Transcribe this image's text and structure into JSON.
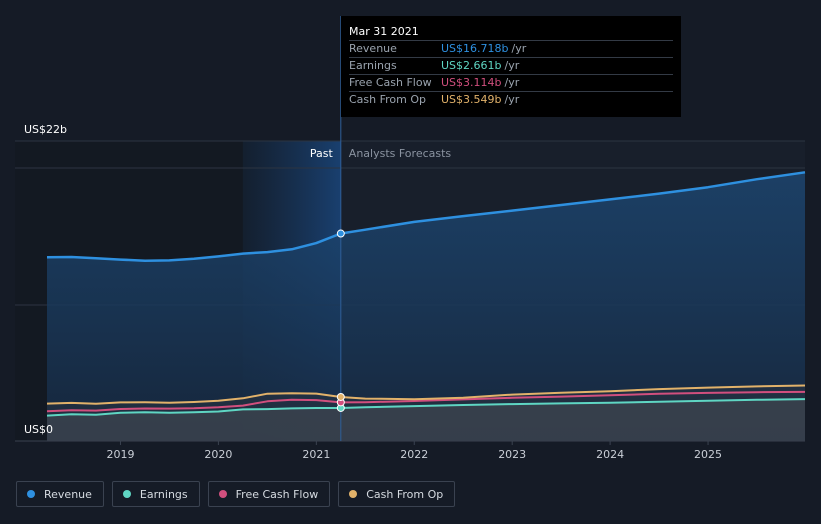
{
  "chart_data": {
    "type": "area",
    "currency": "US$",
    "y_axis": {
      "top_label": "US$22b",
      "bottom_label": "US$0",
      "ylim": [
        0,
        22
      ]
    },
    "x_axis": {
      "ticks": [
        "2019",
        "2020",
        "2021",
        "2022",
        "2023",
        "2024",
        "2025"
      ],
      "tick_values": [
        2019,
        2020,
        2021,
        2022,
        2023,
        2024,
        2025
      ],
      "xlim": [
        2018.26,
        2025.99
      ]
    },
    "divider": {
      "x": 2021.25,
      "past_label": "Past",
      "forecast_label": "Analysts Forecasts",
      "highlight_from": 2020.25
    },
    "series": [
      {
        "name": "Revenue",
        "color": "#2e90e0",
        "points": [
          [
            2018.25,
            14.8
          ],
          [
            2018.5,
            14.83
          ],
          [
            2018.75,
            14.72
          ],
          [
            2019.0,
            14.62
          ],
          [
            2019.25,
            14.53
          ],
          [
            2019.5,
            14.55
          ],
          [
            2019.75,
            14.68
          ],
          [
            2020.0,
            14.88
          ],
          [
            2020.25,
            15.1
          ],
          [
            2020.5,
            15.22
          ],
          [
            2020.75,
            15.45
          ],
          [
            2021.0,
            15.95
          ],
          [
            2021.25,
            16.718
          ],
          [
            2021.5,
            17.03
          ],
          [
            2022.0,
            17.66
          ],
          [
            2022.5,
            18.12
          ],
          [
            2023.0,
            18.57
          ],
          [
            2023.5,
            19.02
          ],
          [
            2024.0,
            19.47
          ],
          [
            2024.5,
            19.94
          ],
          [
            2025.0,
            20.45
          ],
          [
            2025.5,
            21.1
          ],
          [
            2025.99,
            21.65
          ]
        ]
      },
      {
        "name": "Earnings",
        "color": "#5fd6c3",
        "points": [
          [
            2018.25,
            2.05
          ],
          [
            2018.5,
            2.15
          ],
          [
            2018.75,
            2.12
          ],
          [
            2019.0,
            2.28
          ],
          [
            2019.25,
            2.31
          ],
          [
            2019.5,
            2.27
          ],
          [
            2019.75,
            2.32
          ],
          [
            2020.0,
            2.38
          ],
          [
            2020.25,
            2.55
          ],
          [
            2020.5,
            2.57
          ],
          [
            2020.75,
            2.63
          ],
          [
            2021.0,
            2.66
          ],
          [
            2021.25,
            2.661
          ],
          [
            2021.5,
            2.72
          ],
          [
            2022.0,
            2.81
          ],
          [
            2022.5,
            2.9
          ],
          [
            2023.0,
            2.97
          ],
          [
            2023.5,
            3.03
          ],
          [
            2024.0,
            3.09
          ],
          [
            2024.5,
            3.16
          ],
          [
            2025.0,
            3.24
          ],
          [
            2025.5,
            3.32
          ],
          [
            2025.99,
            3.38
          ]
        ]
      },
      {
        "name": "Free Cash Flow",
        "color": "#d14f7e",
        "points": [
          [
            2018.25,
            2.4
          ],
          [
            2018.5,
            2.48
          ],
          [
            2018.75,
            2.45
          ],
          [
            2019.0,
            2.58
          ],
          [
            2019.25,
            2.62
          ],
          [
            2019.5,
            2.61
          ],
          [
            2019.75,
            2.64
          ],
          [
            2020.0,
            2.72
          ],
          [
            2020.25,
            2.85
          ],
          [
            2020.5,
            3.2
          ],
          [
            2020.75,
            3.32
          ],
          [
            2021.0,
            3.3
          ],
          [
            2021.25,
            3.114
          ],
          [
            2021.5,
            3.13
          ],
          [
            2022.0,
            3.22
          ],
          [
            2022.5,
            3.35
          ],
          [
            2023.0,
            3.48
          ],
          [
            2023.5,
            3.58
          ],
          [
            2024.0,
            3.69
          ],
          [
            2024.5,
            3.8
          ],
          [
            2025.0,
            3.88
          ],
          [
            2025.5,
            3.93
          ],
          [
            2025.99,
            3.96
          ]
        ]
      },
      {
        "name": "Cash From Op",
        "color": "#e2b26a",
        "points": [
          [
            2018.25,
            3.01
          ],
          [
            2018.5,
            3.07
          ],
          [
            2018.75,
            3.0
          ],
          [
            2019.0,
            3.11
          ],
          [
            2019.25,
            3.12
          ],
          [
            2019.5,
            3.09
          ],
          [
            2019.75,
            3.14
          ],
          [
            2020.0,
            3.24
          ],
          [
            2020.25,
            3.44
          ],
          [
            2020.5,
            3.81
          ],
          [
            2020.75,
            3.84
          ],
          [
            2021.0,
            3.82
          ],
          [
            2021.25,
            3.549
          ],
          [
            2021.5,
            3.42
          ],
          [
            2022.0,
            3.37
          ],
          [
            2022.5,
            3.49
          ],
          [
            2023.0,
            3.74
          ],
          [
            2023.5,
            3.89
          ],
          [
            2024.0,
            4.01
          ],
          [
            2024.5,
            4.18
          ],
          [
            2025.0,
            4.3
          ],
          [
            2025.5,
            4.4
          ],
          [
            2025.99,
            4.47
          ]
        ]
      }
    ]
  },
  "tooltip": {
    "date": "Mar 31 2021",
    "rows": [
      {
        "label": "Revenue",
        "value": "US$16.718b",
        "unit": "/yr",
        "color": "#2e90e0"
      },
      {
        "label": "Earnings",
        "value": "US$2.661b",
        "unit": "/yr",
        "color": "#5fd6c3"
      },
      {
        "label": "Free Cash Flow",
        "value": "US$3.114b",
        "unit": "/yr",
        "color": "#d14f7e"
      },
      {
        "label": "Cash From Op",
        "value": "US$3.549b",
        "unit": "/yr",
        "color": "#e2b26a"
      }
    ]
  },
  "legend": [
    {
      "label": "Revenue",
      "color": "#2e90e0"
    },
    {
      "label": "Earnings",
      "color": "#5fd6c3"
    },
    {
      "label": "Free Cash Flow",
      "color": "#d14f7e"
    },
    {
      "label": "Cash From Op",
      "color": "#e2b26a"
    }
  ]
}
